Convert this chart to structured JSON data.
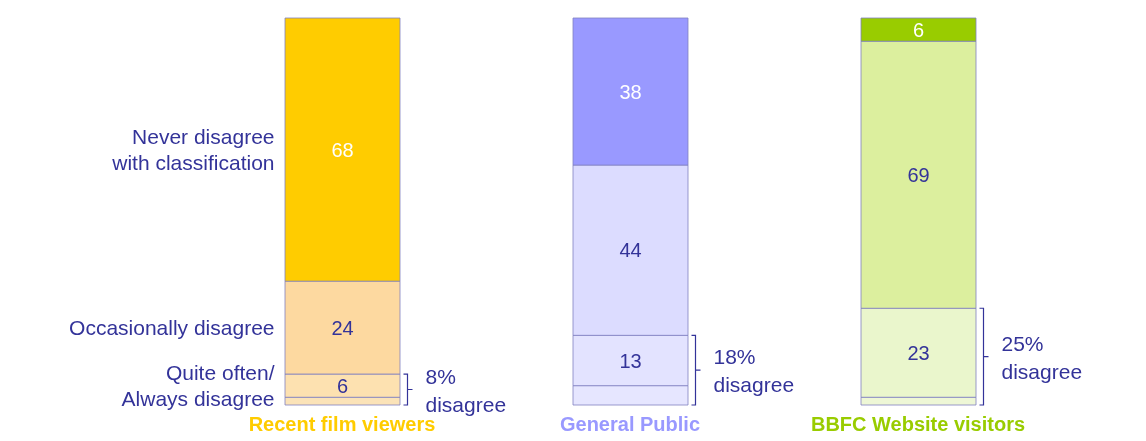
{
  "chart_data": {
    "type": "bar",
    "stacked": true,
    "categories": [
      "Recent film viewers",
      "General Public",
      "BBFC Website visitors"
    ],
    "series": [
      {
        "colors": [
          "#fbe3b8",
          "#e6e6ff",
          "#eef7d6"
        ],
        "values": [
          2,
          5,
          2
        ],
        "value_labels": [
          null,
          null,
          null
        ]
      },
      {
        "name": "Quite often/\nAlways disagree",
        "colors": [
          "#fde1b0",
          "#e3e3ff",
          "#eaf6cc"
        ],
        "values": [
          6,
          13,
          23
        ],
        "value_labels": [
          "6",
          "13",
          "23"
        ]
      },
      {
        "name": "Occasionally disagree",
        "colors": [
          "#fdd9a0",
          "#dcdcff",
          "#dcef9e"
        ],
        "values": [
          24,
          44,
          69
        ],
        "value_labels": [
          "24",
          "44",
          "69"
        ]
      },
      {
        "name": "Never disagree\nwith classification",
        "colors": [
          "#ffcc00",
          "#9999ff",
          "#99cc00"
        ],
        "values": [
          68,
          38,
          6
        ],
        "value_labels": [
          "68",
          "38",
          "6"
        ]
      }
    ],
    "annotations": [
      "8% disagree",
      "18% disagree",
      "25% disagree"
    ]
  }
}
